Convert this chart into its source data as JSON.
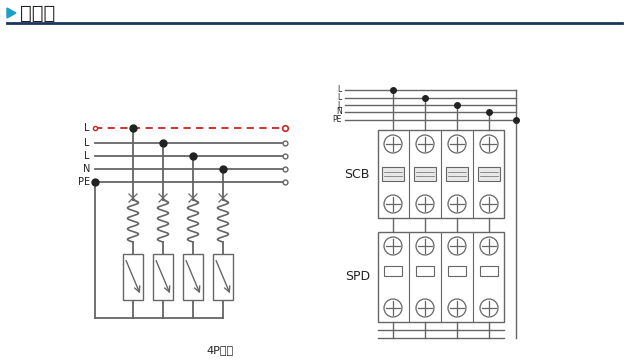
{
  "title_text": "接线图",
  "subtitle": "4P模式",
  "scb_label": "SCB",
  "spd_label": "SPD",
  "line_labels_left": [
    "L",
    "L",
    "L",
    "N",
    "PE"
  ],
  "line_labels_right": [
    "L",
    "L",
    "L",
    "N",
    "PE"
  ],
  "header_line_color": "#1a3560",
  "arrow_color": "#1aa0c8",
  "lc": "#666666",
  "dc": "#222222",
  "rdc": "#cc2222",
  "title_color": "#222222",
  "white": "#ffffff",
  "light_gray": "#e8e8e8"
}
